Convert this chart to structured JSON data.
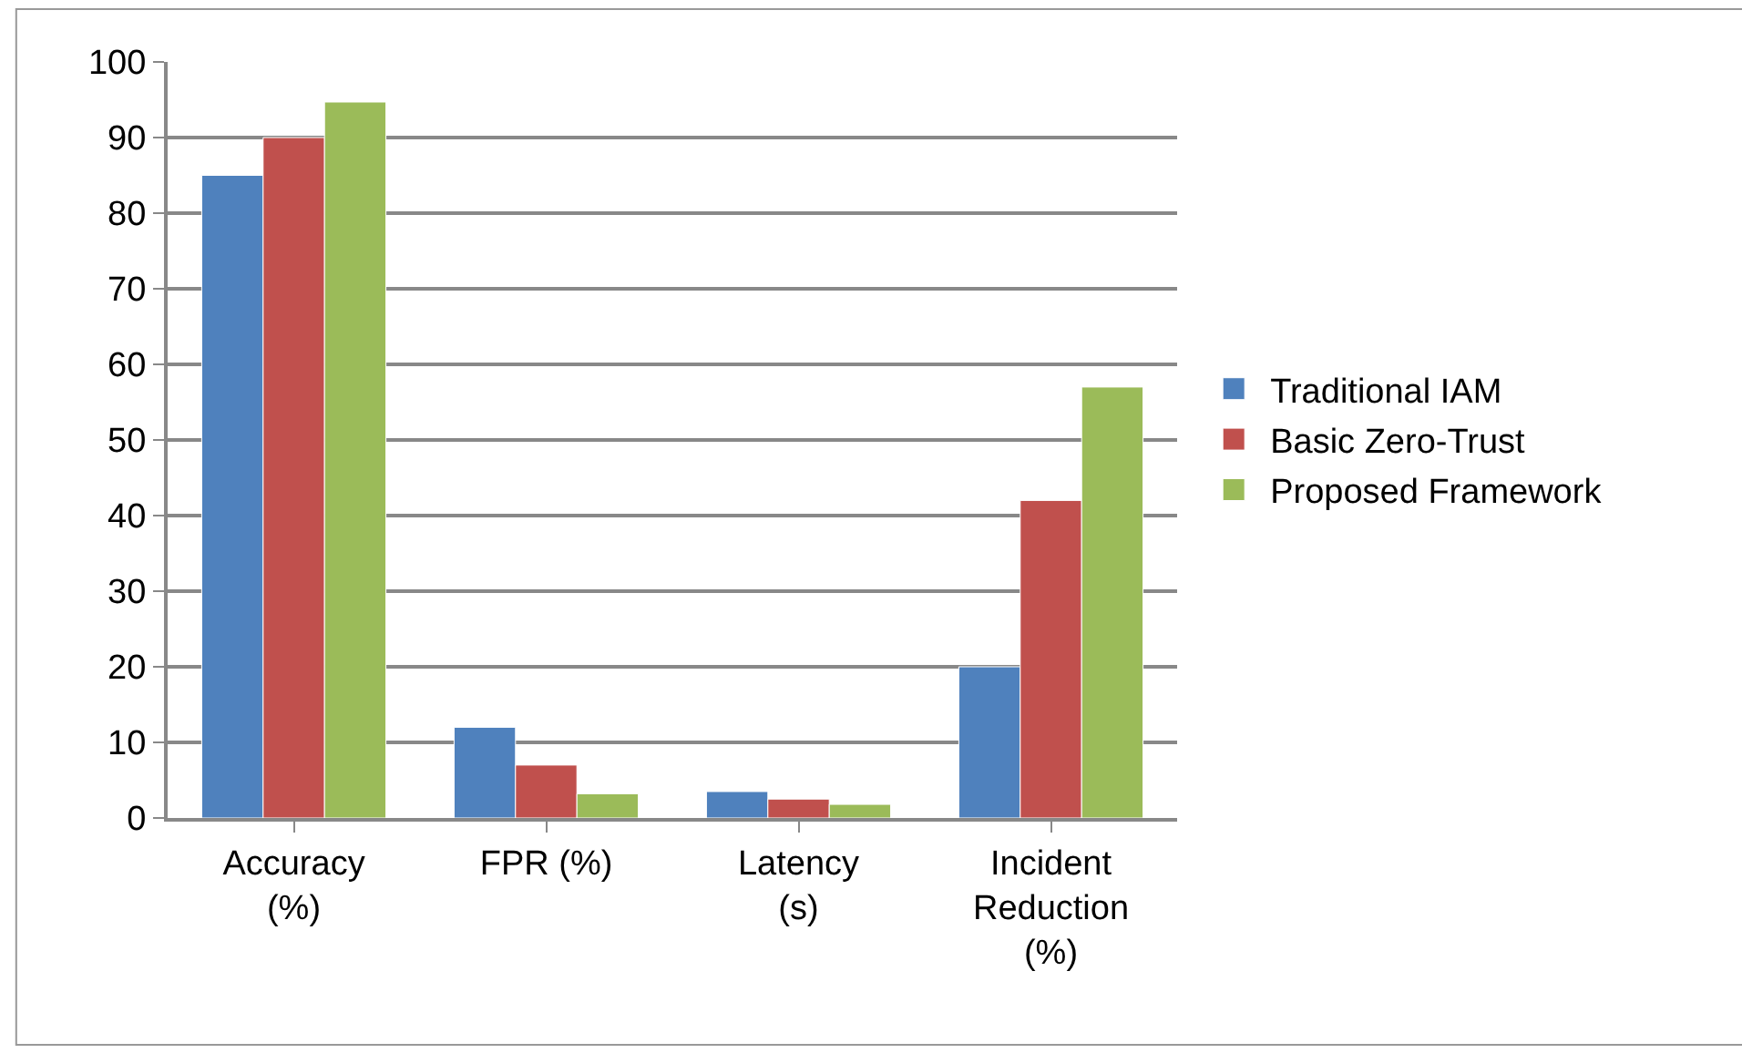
{
  "chart_data": {
    "type": "bar",
    "categories": [
      "Accuracy (%)",
      "FPR (%)",
      "Latency (s)",
      "Incident Reduction (%)"
    ],
    "series": [
      {
        "name": "Traditional IAM",
        "color": "#4f81bd",
        "values": [
          85,
          12,
          3.5,
          20
        ]
      },
      {
        "name": "Basic Zero-Trust",
        "color": "#c0504d",
        "values": [
          90,
          7,
          2.5,
          42
        ]
      },
      {
        "name": "Proposed Framework",
        "color": "#9bbb59",
        "values": [
          94.7,
          3.2,
          1.8,
          57
        ]
      }
    ],
    "ylim": [
      0,
      100
    ],
    "yticks": [
      0,
      10,
      20,
      30,
      40,
      50,
      60,
      70,
      80,
      90,
      100
    ],
    "grid": "y",
    "legend": "right"
  }
}
